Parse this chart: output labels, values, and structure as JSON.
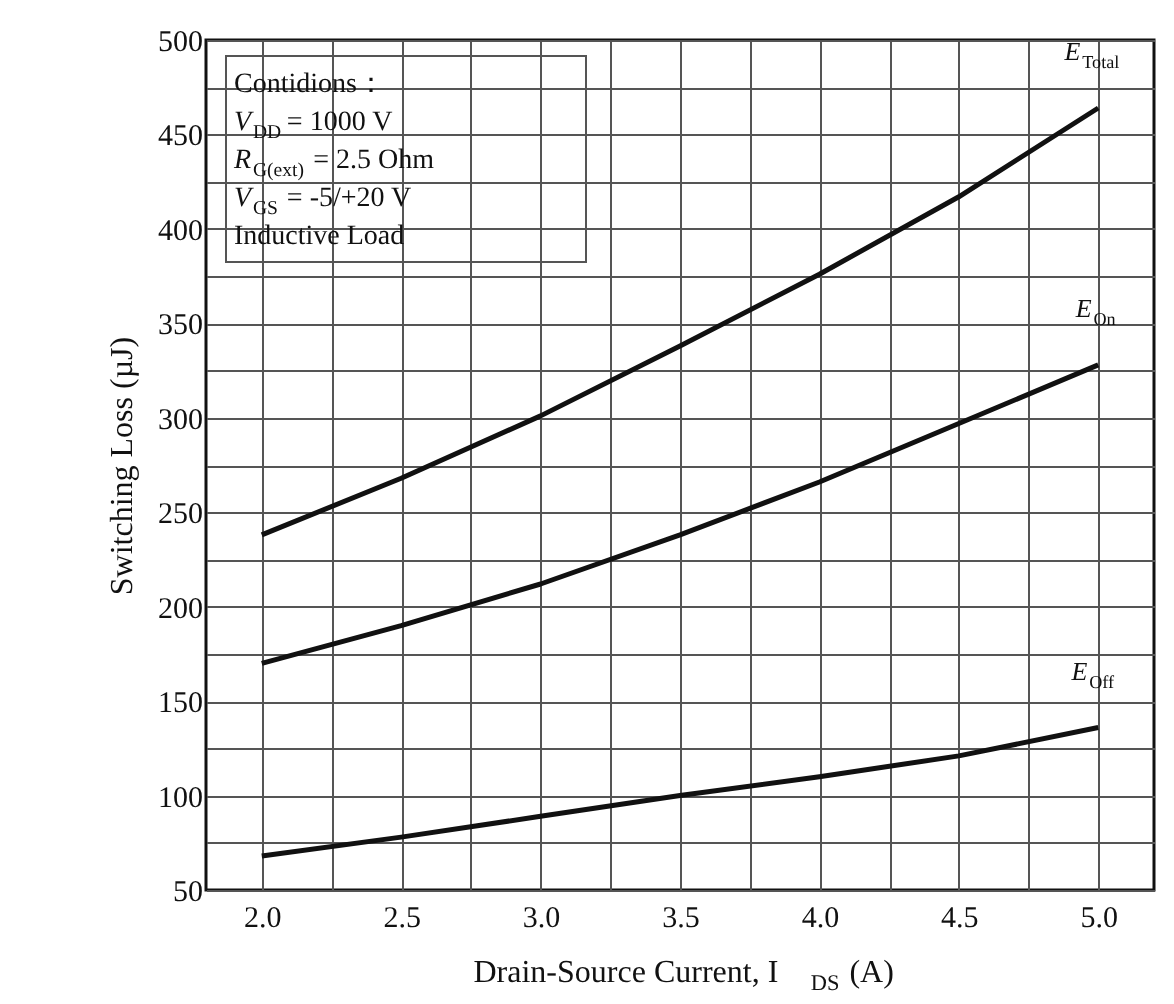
{
  "chart_data": {
    "type": "line",
    "xlabel": "Drain-Source Current, I$_{DS}$ (A)",
    "ylabel": "Switching Loss (µJ)",
    "x": [
      2.0,
      2.5,
      3.0,
      3.5,
      4.0,
      4.5,
      5.0
    ],
    "series": [
      {
        "name": "E$_{Total}$",
        "color": "#111111",
        "values": [
          238,
          268,
          301,
          338,
          376,
          417,
          464
        ]
      },
      {
        "name": "E$_{On}$",
        "color": "#111111",
        "values": [
          170,
          190,
          212,
          238,
          266,
          297,
          328
        ]
      },
      {
        "name": "E$_{Off}$",
        "color": "#111111",
        "values": [
          68,
          78,
          89,
          100,
          110,
          121,
          136
        ]
      }
    ],
    "xlim": [
      1.8,
      5.2
    ],
    "ylim": [
      50,
      500
    ],
    "xticks": [
      {
        "value": 2,
        "label": "2.0"
      },
      {
        "value": 2.25,
        "label": null
      },
      2.5,
      {
        "value": 2.75,
        "label": null
      },
      {
        "value": 3,
        "label": "3.0"
      },
      {
        "value": 3.25,
        "label": null
      },
      3.5,
      {
        "value": 3.75,
        "label": null
      },
      {
        "value": 4,
        "label": "4.0"
      },
      {
        "value": 4.25,
        "label": null
      },
      4.5,
      {
        "value": 4.75,
        "label": null
      },
      {
        "value": 5,
        "label": "5.0"
      }
    ],
    "yticks": [
      50,
      {
        "value": 75,
        "label": null
      },
      100,
      {
        "value": 125,
        "label": null
      },
      150,
      {
        "value": 175,
        "label": null
      },
      200,
      {
        "value": 225,
        "label": null
      },
      250,
      {
        "value": 275,
        "label": null
      },
      300,
      {
        "value": 325,
        "label": null
      },
      350,
      {
        "value": 375,
        "label": null
      },
      400,
      {
        "value": 425,
        "label": null
      },
      450,
      {
        "value": 475,
        "label": null
      },
      500
    ],
    "grid": true,
    "legend": false,
    "marker": "none",
    "line_style": "solid",
    "annotations": [
      "Contidions：",
      "V$_{DD}$ = 1000 V",
      "R$_{G(ext)}$ = 2.5 Ohm",
      "V$_{GS}$ = -5/+20 V",
      "Inductive Load"
    ]
  }
}
